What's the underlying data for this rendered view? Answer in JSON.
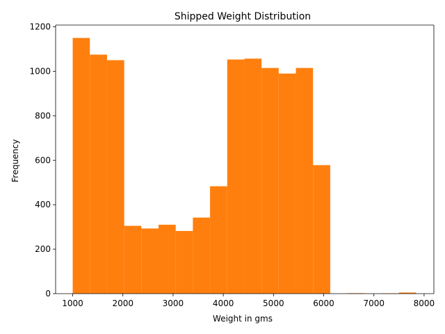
{
  "chart_data": {
    "type": "bar",
    "title": "Shipped Weight Distribution",
    "xlabel": "Weight in gms",
    "ylabel": "Frequency",
    "bar_color": "#ff7f0e",
    "xlim": [
      660,
      8195
    ],
    "ylim": [
      0,
      1208
    ],
    "x_ticks": [
      1000,
      2000,
      3000,
      4000,
      5000,
      6000,
      7000,
      8000
    ],
    "y_ticks": [
      0,
      200,
      400,
      600,
      800,
      1000,
      1200
    ],
    "bins": [
      {
        "x0": 1000,
        "x1": 1342,
        "value": 1150
      },
      {
        "x0": 1342,
        "x1": 1684,
        "value": 1075
      },
      {
        "x0": 1684,
        "x1": 2026,
        "value": 1050
      },
      {
        "x0": 2026,
        "x1": 2368,
        "value": 305
      },
      {
        "x0": 2368,
        "x1": 2710,
        "value": 293
      },
      {
        "x0": 2710,
        "x1": 3052,
        "value": 310
      },
      {
        "x0": 3052,
        "x1": 3394,
        "value": 282
      },
      {
        "x0": 3394,
        "x1": 3736,
        "value": 342
      },
      {
        "x0": 3736,
        "x1": 4078,
        "value": 483
      },
      {
        "x0": 4078,
        "x1": 4420,
        "value": 1053
      },
      {
        "x0": 4420,
        "x1": 4762,
        "value": 1057
      },
      {
        "x0": 4762,
        "x1": 5104,
        "value": 1015
      },
      {
        "x0": 5104,
        "x1": 5446,
        "value": 990
      },
      {
        "x0": 5446,
        "x1": 5788,
        "value": 1015
      },
      {
        "x0": 5788,
        "x1": 6130,
        "value": 578
      },
      {
        "x0": 6472,
        "x1": 6814,
        "value": 2
      },
      {
        "x0": 7156,
        "x1": 7498,
        "value": 1
      },
      {
        "x0": 7498,
        "x1": 7840,
        "value": 5
      }
    ]
  }
}
